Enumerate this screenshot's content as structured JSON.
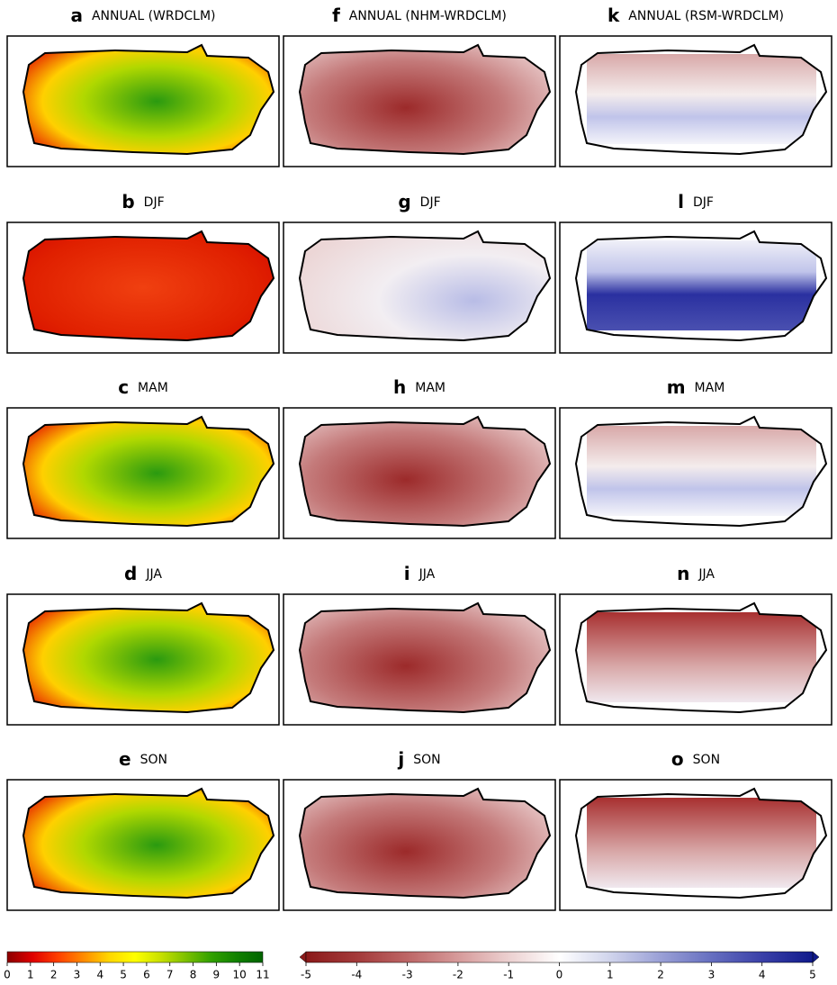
{
  "panels": [
    {
      "letter": "a",
      "title": "ANNUAL (WRDCLM)"
    },
    {
      "letter": "f",
      "title": "ANNUAL (NHM-WRDCLM)"
    },
    {
      "letter": "k",
      "title": "ANNUAL (RSM-WRDCLM)"
    },
    {
      "letter": "b",
      "title": "DJF"
    },
    {
      "letter": "g",
      "title": "DJF"
    },
    {
      "letter": "l",
      "title": "DJF"
    },
    {
      "letter": "c",
      "title": "MAM"
    },
    {
      "letter": "h",
      "title": "MAM"
    },
    {
      "letter": "m",
      "title": "MAM"
    },
    {
      "letter": "d",
      "title": "JJA"
    },
    {
      "letter": "i",
      "title": "JJA"
    },
    {
      "letter": "n",
      "title": "JJA"
    },
    {
      "letter": "e",
      "title": "SON"
    },
    {
      "letter": "j",
      "title": "SON"
    },
    {
      "letter": "o",
      "title": "SON"
    }
  ],
  "colorbars": [
    {
      "lim": [
        0,
        11
      ],
      "ticks": [
        0,
        1,
        2,
        3,
        4,
        5,
        6,
        7,
        8,
        9,
        10,
        11
      ],
      "colors": [
        "#8b0000",
        "#e00000",
        "#ff4000",
        "#ff8c00",
        "#ffd700",
        "#ffff00",
        "#c8e000",
        "#7cc000",
        "#30a000",
        "#108000",
        "#006400"
      ]
    },
    {
      "lim": [
        -5,
        5
      ],
      "ticks": [
        -5,
        -4,
        -3,
        -2,
        -1,
        0,
        1,
        2,
        3,
        4,
        5
      ],
      "colors": [
        "#8b1a1a",
        "#a33a3a",
        "#bd6666",
        "#d69a9a",
        "#ecd0d0",
        "#ffffff",
        "#d0d4ec",
        "#9aa0d6",
        "#666fc0",
        "#3a40a8",
        "#101a8b"
      ]
    }
  ]
}
